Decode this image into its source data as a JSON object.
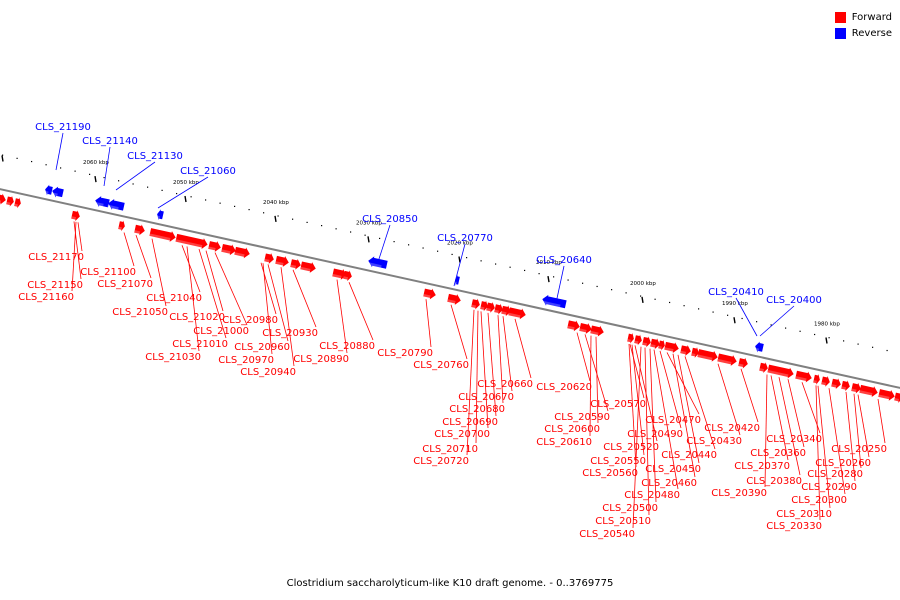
{
  "legend": {
    "items": [
      {
        "label": "Forward",
        "color": "#ff0000"
      },
      {
        "label": "Reverse",
        "color": "#0000ff"
      }
    ]
  },
  "caption": "Clostridium saccharolyticum-like K10 draft genome. - 0..3769775",
  "colors": {
    "forward": "#ff0000",
    "reverse": "#0000ff",
    "backbone": "#808080"
  },
  "kbp_labels": [
    "2060 kbp",
    "2050 kbp",
    "2040 kbp",
    "2030 kbp",
    "2020 kbp",
    "2010 kbp",
    "2000 kbp",
    "1990 kbp",
    "1980 kbp"
  ],
  "reverse_genes": [
    "CLS_21190",
    "CLS_21140",
    "CLS_21130",
    "CLS_21060",
    "CLS_20850",
    "CLS_20770",
    "CLS_20640",
    "CLS_20410",
    "CLS_20400"
  ],
  "forward_genes": [
    "CLS_21170",
    "CLS_21150",
    "CLS_21160",
    "CLS_21100",
    "CLS_21070",
    "CLS_21050",
    "CLS_21040",
    "CLS_21020",
    "CLS_21010",
    "CLS_21000",
    "CLS_21030",
    "CLS_20980",
    "CLS_20960",
    "CLS_20970",
    "CLS_20930",
    "CLS_20940",
    "CLS_20880",
    "CLS_20890",
    "CLS_20790",
    "CLS_20760",
    "CLS_20660",
    "CLS_20670",
    "CLS_20680",
    "CLS_20690",
    "CLS_20700",
    "CLS_20710",
    "CLS_20720",
    "CLS_20620",
    "CLS_20570",
    "CLS_20590",
    "CLS_20600",
    "CLS_20610",
    "CLS_20520",
    "CLS_20550",
    "CLS_20560",
    "CLS_20500",
    "CLS_20510",
    "CLS_20540",
    "CLS_20490",
    "CLS_20470",
    "CLS_20440",
    "CLS_20450",
    "CLS_20460",
    "CLS_20480",
    "CLS_20420",
    "CLS_20430",
    "CLS_20370",
    "CLS_20380",
    "CLS_20390",
    "CLS_20340",
    "CLS_20360",
    "CLS_20300",
    "CLS_20310",
    "CLS_20330",
    "CLS_20250",
    "CLS_20260",
    "CLS_20280",
    "CLS_20290"
  ]
}
